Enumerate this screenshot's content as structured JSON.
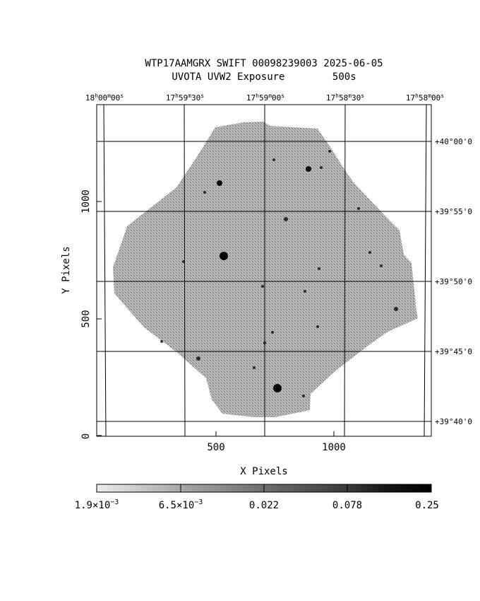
{
  "title": {
    "line1": "WTP17AAMGRX SWIFT 00098239003 2025-06-05",
    "line2": "UVOTA UVW2 Exposure        500s"
  },
  "ra_ticks": [
    {
      "h": "18",
      "m": "00",
      "s": "00"
    },
    {
      "h": "17",
      "m": "59",
      "s": "30"
    },
    {
      "h": "17",
      "m": "59",
      "s": "00"
    },
    {
      "h": "17",
      "m": "58",
      "s": "30"
    },
    {
      "h": "17",
      "m": "58",
      "s": "00"
    }
  ],
  "dec_ticks": [
    "+40°00'0",
    "+39°55'0",
    "+39°50'0",
    "+39°45'0",
    "+39°40'0"
  ],
  "x_axis": {
    "label": "X Pixels",
    "ticks": [
      "500",
      "1000"
    ]
  },
  "y_axis": {
    "label": "Y Pixels",
    "ticks": [
      "0",
      "500",
      "1000"
    ]
  },
  "colorbar": {
    "ticks": [
      {
        "mant": "1.9×10",
        "exp": "−3"
      },
      {
        "mant": "6.5×10",
        "exp": "−3"
      },
      {
        "mant": "0.022",
        "exp": ""
      },
      {
        "mant": "0.078",
        "exp": ""
      },
      {
        "mant": "0.25",
        "exp": ""
      }
    ]
  },
  "colors": {
    "background": "#ffffff",
    "noise": "#8f8f8f",
    "star": "#000000",
    "grid": "#000000"
  },
  "scale": "log",
  "grid": true
}
